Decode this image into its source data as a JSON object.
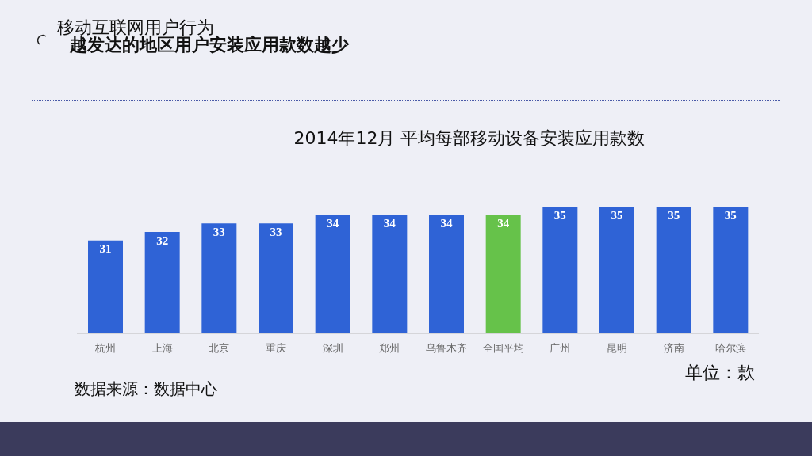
{
  "chart_data": {
    "type": "bar",
    "title": "2014年12月 平均每部移动设备安装应用款数",
    "annotations": [
      "移动互联网用户行为",
      "越发达的地区用户安装应用款数越少",
      "单位：款",
      "数据来源：数据中心"
    ],
    "categories": [
      "杭州",
      "上海",
      "北京",
      "重庆",
      "深圳",
      "郑州",
      "乌鲁木齐",
      "全国平均",
      "广州",
      "昆明",
      "济南",
      "哈尔滨"
    ],
    "values": [
      31,
      32,
      33,
      33,
      34,
      34,
      34,
      34,
      35,
      35,
      35,
      35
    ],
    "colors": [
      "#2f63d6",
      "#2f63d6",
      "#2f63d6",
      "#2f63d6",
      "#2f63d6",
      "#2f63d6",
      "#2f63d6",
      "#66c24a",
      "#2f63d6",
      "#2f63d6",
      "#2f63d6",
      "#2f63d6"
    ],
    "ylim": [
      20,
      35
    ],
    "data_labels": true
  }
}
